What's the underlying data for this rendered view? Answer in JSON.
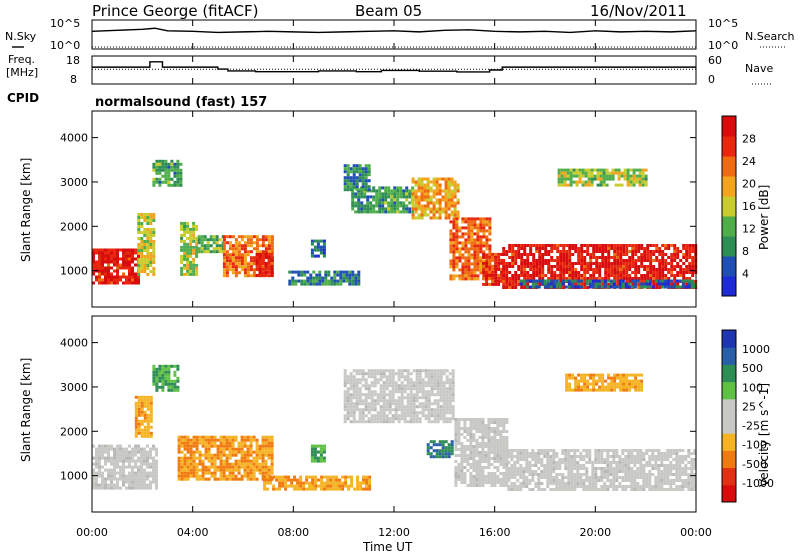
{
  "header": {
    "site": "Prince George (fitACF)",
    "beam": "Beam 05",
    "date": "16/Nov/2011"
  },
  "noise_panel": {
    "left_label": "N.Sky",
    "right_label": "N.Search",
    "left_ticks": [
      "10^5",
      "10^0"
    ],
    "right_ticks": [
      "10^5",
      "10^0"
    ]
  },
  "freq_panel": {
    "left_label_1": "Freq.",
    "left_label_2": "[MHz]",
    "right_label": "Nave",
    "left_ticks": [
      "18",
      "8"
    ],
    "right_ticks": [
      "60",
      "0"
    ]
  },
  "cpid": {
    "label": "CPID",
    "value": "normalsound (fast) 157"
  },
  "colors": {
    "power_scale": [
      "#1c2bd6",
      "#1f4fb4",
      "#2e8c55",
      "#4fae4a",
      "#c8cc2c",
      "#f2a51c",
      "#f06a10",
      "#e8280e",
      "#d80c0c"
    ],
    "velocity_scale": [
      "#1d35b0",
      "#2a5fa8",
      "#2e8c55",
      "#5fc044",
      "#c8c8c4",
      "#c8c8c4",
      "#f5b324",
      "#f07a10",
      "#e23014",
      "#d80c0c"
    ],
    "ground_scatter": "#a8a8a8"
  },
  "chart_data": [
    {
      "type": "line",
      "title": "N.Sky / N.Search",
      "x_unit": "hour UT",
      "xlim": [
        0,
        24
      ],
      "series": [
        {
          "name": "N.Sky",
          "x": [
            0,
            1,
            2,
            2.5,
            3,
            4,
            5,
            6,
            7,
            8,
            9,
            10,
            11,
            12,
            13,
            14,
            15,
            16,
            17,
            18,
            19,
            20,
            21,
            22,
            23,
            24
          ],
          "y": [
            3.2,
            3.4,
            3.6,
            3.8,
            3.3,
            3.2,
            3.0,
            3.1,
            3.2,
            3.1,
            3.0,
            3.1,
            3.2,
            3.3,
            3.1,
            3.4,
            3.5,
            3.2,
            3.1,
            3.2,
            3.0,
            3.3,
            3.1,
            3.2,
            3.1,
            3.3
          ]
        },
        {
          "name": "N.Search",
          "x": [
            0,
            24
          ],
          "y": [
            0.2,
            0.2
          ]
        }
      ]
    },
    {
      "type": "line",
      "title": "Freq. [MHz] / Nave",
      "xlim": [
        0,
        24
      ],
      "ylim": [
        8,
        18
      ],
      "series": [
        {
          "name": "Freq.",
          "x": [
            0,
            2.3,
            2.3,
            2.8,
            2.8,
            5,
            5,
            5.4,
            5.4,
            6.5,
            6.5,
            9,
            9,
            10.5,
            10.5,
            11.5,
            11.5,
            13,
            13,
            14.5,
            14.5,
            15.8,
            15.8,
            16.3,
            16.3,
            24
          ],
          "y": [
            14.2,
            14.2,
            16.4,
            16.4,
            14.2,
            14.2,
            13.4,
            13.4,
            12.6,
            12.6,
            12.3,
            12.3,
            12.6,
            12.6,
            12.3,
            12.3,
            12.8,
            12.8,
            12.5,
            12.5,
            12.2,
            12.2,
            13.0,
            13.0,
            14.2,
            14.2
          ]
        },
        {
          "name": "Nave",
          "x": [
            0,
            24
          ],
          "y": [
            13.3,
            13.3
          ]
        }
      ]
    },
    {
      "type": "heatmap",
      "title": "Power [dB]",
      "xlabel": "Time UT",
      "ylabel": "Slant Range [km]",
      "xlim": [
        0,
        24
      ],
      "ylim": [
        180,
        4600
      ],
      "x_ticks": [
        "00:00",
        "04:00",
        "08:00",
        "12:00",
        "16:00",
        "20:00",
        "00:00"
      ],
      "y_ticks": [
        1000,
        2000,
        3000,
        4000
      ],
      "colorbar_label": "Power [dB]",
      "colorbar_ticks": [
        4,
        8,
        12,
        16,
        20,
        24,
        28
      ],
      "regions": [
        {
          "t0": 0.0,
          "t1": 1.8,
          "r0": 700,
          "r1": 1500,
          "v": 27
        },
        {
          "t0": 1.8,
          "t1": 2.4,
          "r0": 900,
          "r1": 2300,
          "v": 16
        },
        {
          "t0": 2.4,
          "t1": 3.5,
          "r0": 2900,
          "r1": 3500,
          "v": 10
        },
        {
          "t0": 3.5,
          "t1": 4.2,
          "r0": 900,
          "r1": 2100,
          "v": 14
        },
        {
          "t0": 4.2,
          "t1": 5.2,
          "r0": 1400,
          "r1": 1800,
          "v": 12
        },
        {
          "t0": 5.2,
          "t1": 7.2,
          "r0": 900,
          "r1": 1800,
          "v": 22
        },
        {
          "t0": 6.5,
          "t1": 7.2,
          "r0": 900,
          "r1": 1400,
          "v": 27
        },
        {
          "t0": 7.8,
          "t1": 10.6,
          "r0": 700,
          "r1": 1000,
          "v": 8
        },
        {
          "t0": 8.7,
          "t1": 9.2,
          "r0": 1300,
          "r1": 1700,
          "v": 6
        },
        {
          "t0": 10.3,
          "t1": 12.7,
          "r0": 2300,
          "r1": 2900,
          "v": 10
        },
        {
          "t0": 12.7,
          "t1": 14.5,
          "r0": 2200,
          "r1": 3100,
          "v": 18
        },
        {
          "t0": 14.2,
          "t1": 15.8,
          "r0": 800,
          "r1": 2200,
          "v": 22
        },
        {
          "t0": 15.5,
          "t1": 16.3,
          "r0": 700,
          "r1": 1400,
          "v": 26
        },
        {
          "t0": 16.3,
          "t1": 24.0,
          "r0": 650,
          "r1": 1600,
          "v": 27
        },
        {
          "t0": 17.0,
          "t1": 24.0,
          "r0": 600,
          "r1": 800,
          "v": 6
        },
        {
          "t0": 10.0,
          "t1": 11.0,
          "r0": 2800,
          "r1": 3400,
          "v": 8
        },
        {
          "t0": 18.5,
          "t1": 22.0,
          "r0": 2900,
          "r1": 3300,
          "v": 14
        }
      ]
    },
    {
      "type": "heatmap",
      "title": "Velocity [m s^-1]",
      "xlabel": "Time UT",
      "ylabel": "Slant Range [km]",
      "xlim": [
        0,
        24
      ],
      "ylim": [
        180,
        4600
      ],
      "x_ticks": [
        "00:00",
        "04:00",
        "08:00",
        "12:00",
        "16:00",
        "20:00",
        "00:00"
      ],
      "y_ticks": [
        1000,
        2000,
        3000,
        4000
      ],
      "colorbar_label": "Velocity [m s^-1]",
      "colorbar_ticks": [
        1000,
        500,
        100,
        25,
        -25,
        -100,
        -500,
        -1000
      ],
      "regions": [
        {
          "t0": 0.0,
          "t1": 2.6,
          "r0": 700,
          "r1": 1700,
          "v": 0
        },
        {
          "t0": 1.7,
          "t1": 2.4,
          "r0": 1900,
          "r1": 2800,
          "v": -200
        },
        {
          "t0": 2.4,
          "t1": 3.4,
          "r0": 2900,
          "r1": 3500,
          "v": 200
        },
        {
          "t0": 3.4,
          "t1": 7.2,
          "r0": 900,
          "r1": 1900,
          "v": -250
        },
        {
          "t0": 6.8,
          "t1": 11.0,
          "r0": 700,
          "r1": 1000,
          "v": -150
        },
        {
          "t0": 8.7,
          "t1": 9.2,
          "r0": 1300,
          "r1": 1700,
          "v": 150
        },
        {
          "t0": 10.0,
          "t1": 14.4,
          "r0": 2200,
          "r1": 3400,
          "v": 0
        },
        {
          "t0": 13.3,
          "t1": 14.3,
          "r0": 1400,
          "r1": 1800,
          "v": 300
        },
        {
          "t0": 14.4,
          "t1": 16.5,
          "r0": 800,
          "r1": 2300,
          "v": 0
        },
        {
          "t0": 16.5,
          "t1": 24.0,
          "r0": 700,
          "r1": 1600,
          "v": 0
        },
        {
          "t0": 18.8,
          "t1": 21.8,
          "r0": 2900,
          "r1": 3300,
          "v": -200
        }
      ]
    }
  ]
}
